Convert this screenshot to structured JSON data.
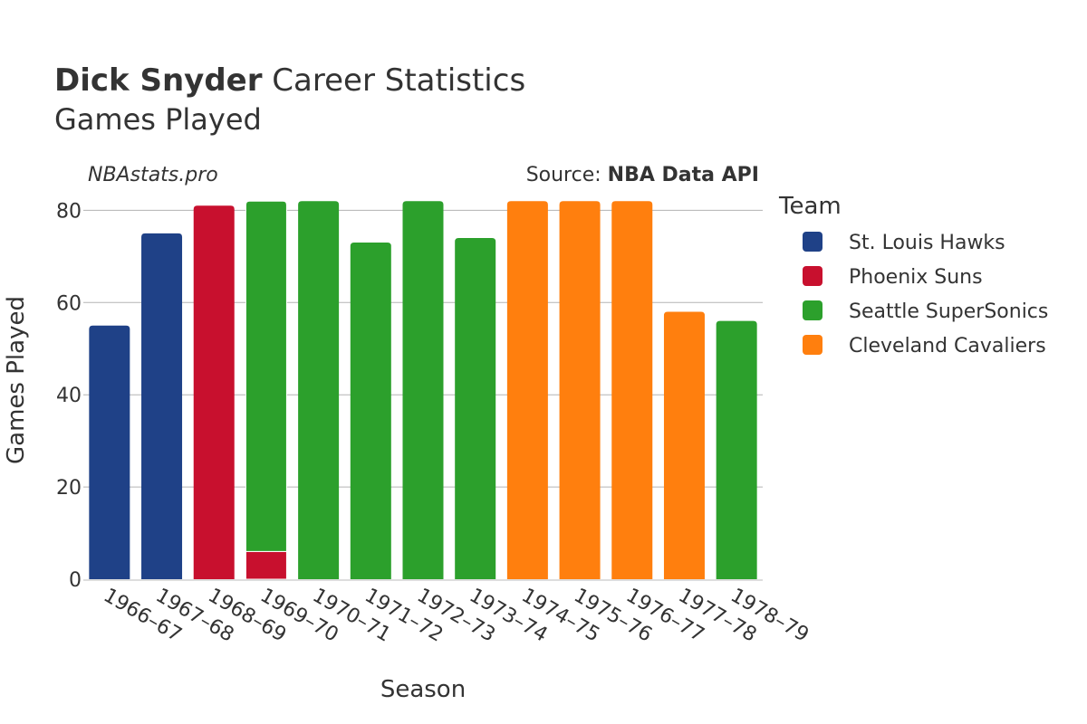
{
  "header": {
    "title_bold": "Dick Snyder",
    "title_rest": " Career Statistics",
    "subtitle": "Games Played"
  },
  "watermark": "NBAstats.pro",
  "source": {
    "prefix": "Source: ",
    "name": "NBA Data API"
  },
  "legend": {
    "title": "Team",
    "items": [
      {
        "label": "St. Louis Hawks",
        "color": "#1f4187"
      },
      {
        "label": "Phoenix Suns",
        "color": "#c8102e"
      },
      {
        "label": "Seattle SuperSonics",
        "color": "#2ca02c"
      },
      {
        "label": "Cleveland Cavaliers",
        "color": "#ff7f0e"
      }
    ]
  },
  "chart_data": {
    "type": "bar",
    "stacked": true,
    "xlabel": "Season",
    "ylabel": "Games Played",
    "ylim": [
      0,
      84
    ],
    "yticks": [
      0,
      20,
      40,
      60,
      80
    ],
    "grid": true,
    "legend_position": "right",
    "categories": [
      "1966–67",
      "1967–68",
      "1968–69",
      "1969–70",
      "1970–71",
      "1971–72",
      "1972–73",
      "1973–74",
      "1974–75",
      "1975–76",
      "1976–77",
      "1977–78",
      "1978–79"
    ],
    "series": [
      {
        "name": "St. Louis Hawks",
        "color": "#1f4187",
        "values": [
          55,
          75,
          0,
          0,
          0,
          0,
          0,
          0,
          0,
          0,
          0,
          0,
          0
        ]
      },
      {
        "name": "Phoenix Suns",
        "color": "#c8102e",
        "values": [
          0,
          0,
          81,
          6,
          0,
          0,
          0,
          0,
          0,
          0,
          0,
          0,
          0
        ]
      },
      {
        "name": "Seattle SuperSonics",
        "color": "#2ca02c",
        "values": [
          0,
          0,
          0,
          76,
          82,
          73,
          82,
          74,
          0,
          0,
          0,
          0,
          56
        ]
      },
      {
        "name": "Cleveland Cavaliers",
        "color": "#ff7f0e",
        "values": [
          0,
          0,
          0,
          0,
          0,
          0,
          0,
          0,
          82,
          82,
          82,
          58,
          0
        ]
      }
    ]
  }
}
